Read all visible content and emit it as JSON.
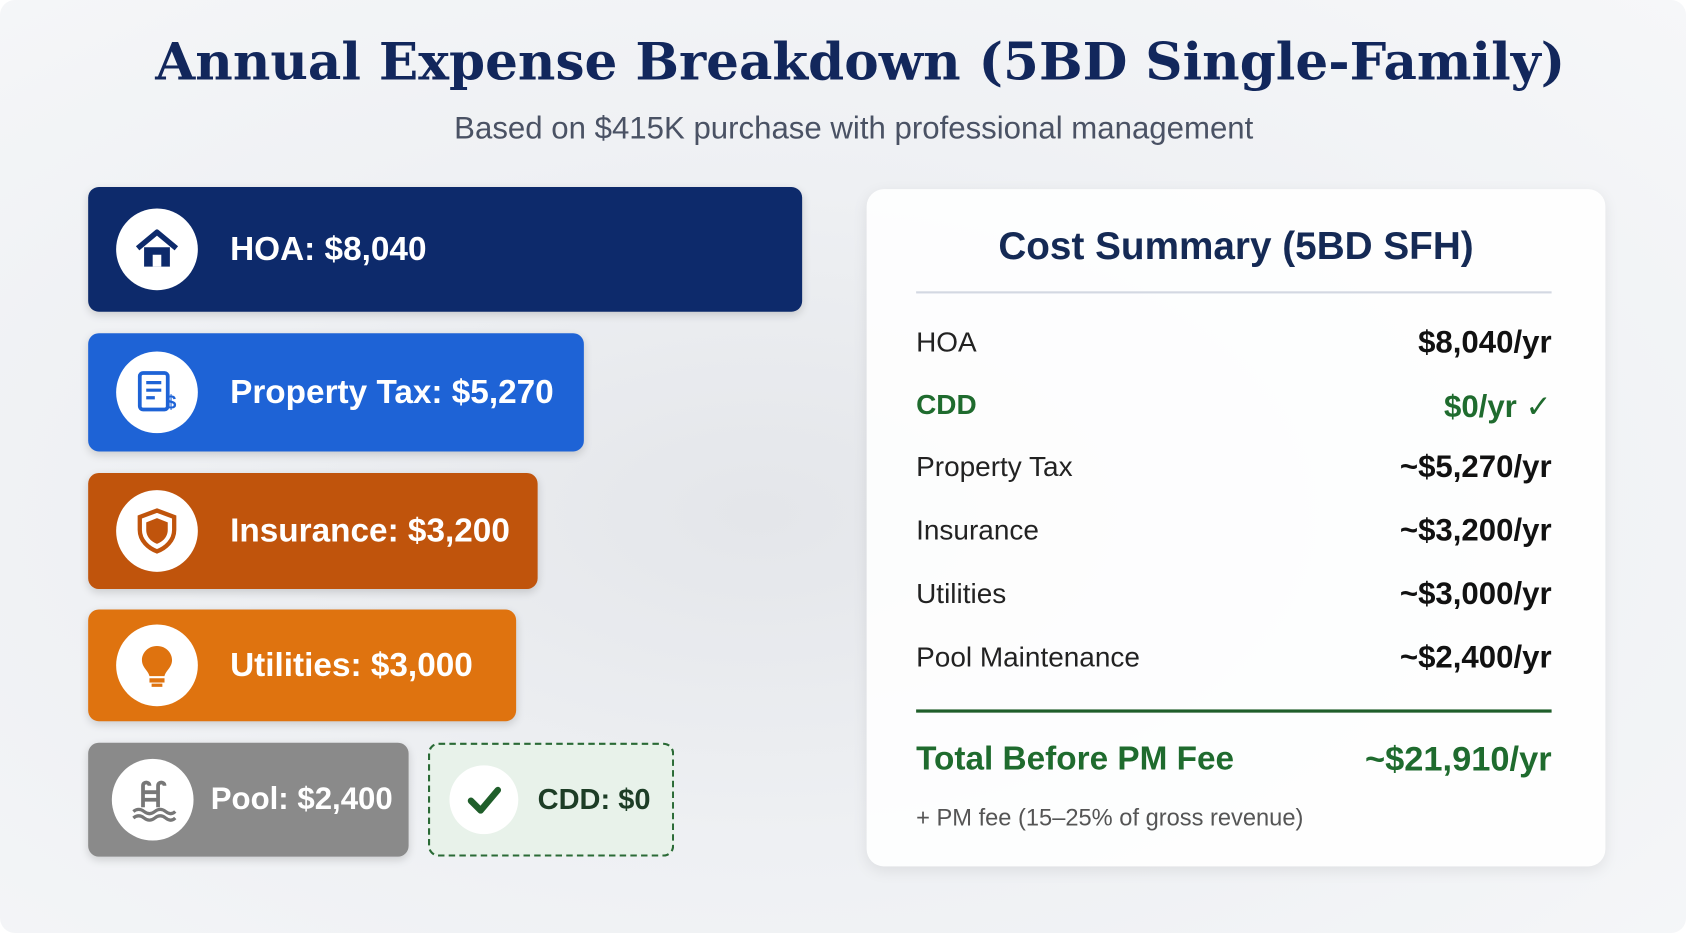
{
  "header": {
    "title": "Annual Expense Breakdown (5BD Single-Family)",
    "subtitle": "Based on $415K purchase with professional management"
  },
  "expense_cards": [
    "HOA: $8,040",
    "Property Tax: $5,270",
    "Insurance: $3,200",
    "Utilities: $3,000",
    "Pool: $2,400",
    "CDD: $0"
  ],
  "summary": {
    "title": "Cost Summary (5BD SFH)",
    "rows": [
      {
        "label": "HOA",
        "value": "$8,040/yr"
      },
      {
        "label": "CDD",
        "value": "$0/yr ✓"
      },
      {
        "label": "Property Tax",
        "value": "~$5,270/yr"
      },
      {
        "label": "Insurance",
        "value": "~$3,200/yr"
      },
      {
        "label": "Utilities",
        "value": "~$3,000/yr"
      },
      {
        "label": "Pool Maintenance",
        "value": "~$2,400/yr"
      }
    ],
    "total": {
      "label": "Total Before PM Fee",
      "value": "~$21,910/yr"
    },
    "note": "+ PM fee (15–25% of gross revenue)"
  }
}
